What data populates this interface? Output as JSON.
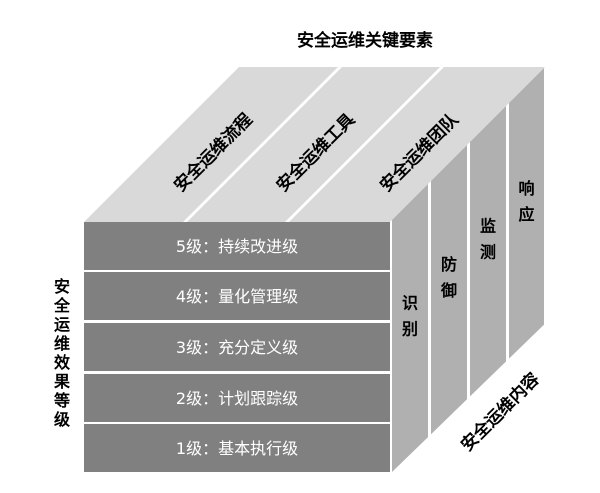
{
  "title": "安全运维关键要素",
  "left_axis_label": "安全运维效果等级",
  "right_axis_label": "安全运维内容",
  "top_items": [
    "安全运维流程",
    "安全运维工具",
    "安全运维团队"
  ],
  "levels": [
    "5级：持续改进级",
    "4级：量化管理级",
    "3级：充分定义级",
    "2级：计划跟踪级",
    "1级：基本执行级"
  ],
  "side_items": [
    "识别",
    "防御",
    "监测",
    "响应"
  ],
  "colors": {
    "front": "#808080",
    "top": "#d9d9d9",
    "side": "#b0b0b0"
  }
}
